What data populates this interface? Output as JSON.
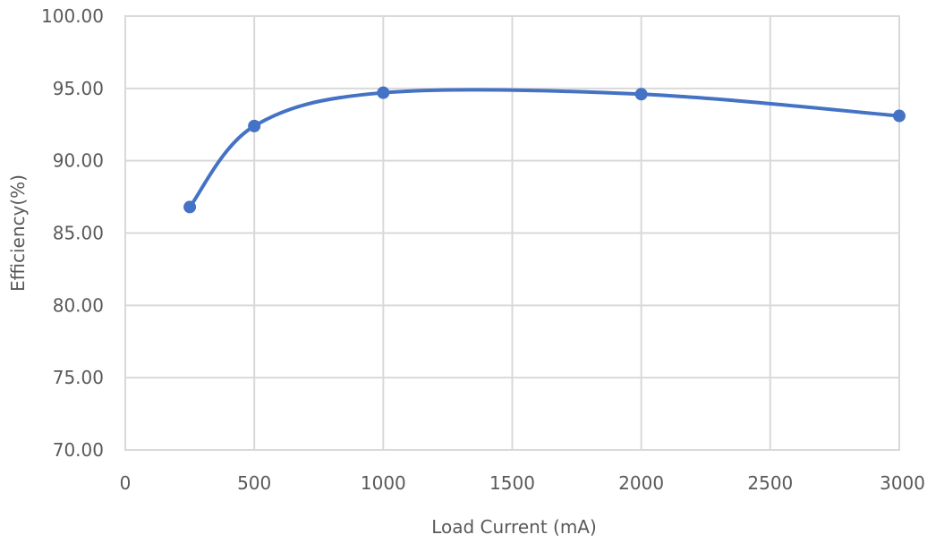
{
  "chart_data": {
    "type": "scatter",
    "subtype": "smooth-line-with-markers",
    "title": "",
    "xlabel": "Load Current (mA)",
    "ylabel": "Efficiency(%)",
    "xlim": [
      0,
      3000
    ],
    "ylim": [
      70,
      100
    ],
    "x_ticks": [
      "0",
      "500",
      "1000",
      "1500",
      "2000",
      "2500",
      "3000"
    ],
    "y_ticks": [
      "70.00",
      "75.00",
      "80.00",
      "85.00",
      "90.00",
      "95.00",
      "100.00"
    ],
    "grid": true,
    "legend": "none",
    "series": [
      {
        "color": "#4472c4",
        "x": [
          250,
          500,
          1000,
          2000,
          3000
        ],
        "y": [
          86.8,
          92.4,
          94.7,
          94.6,
          93.1
        ]
      }
    ]
  }
}
